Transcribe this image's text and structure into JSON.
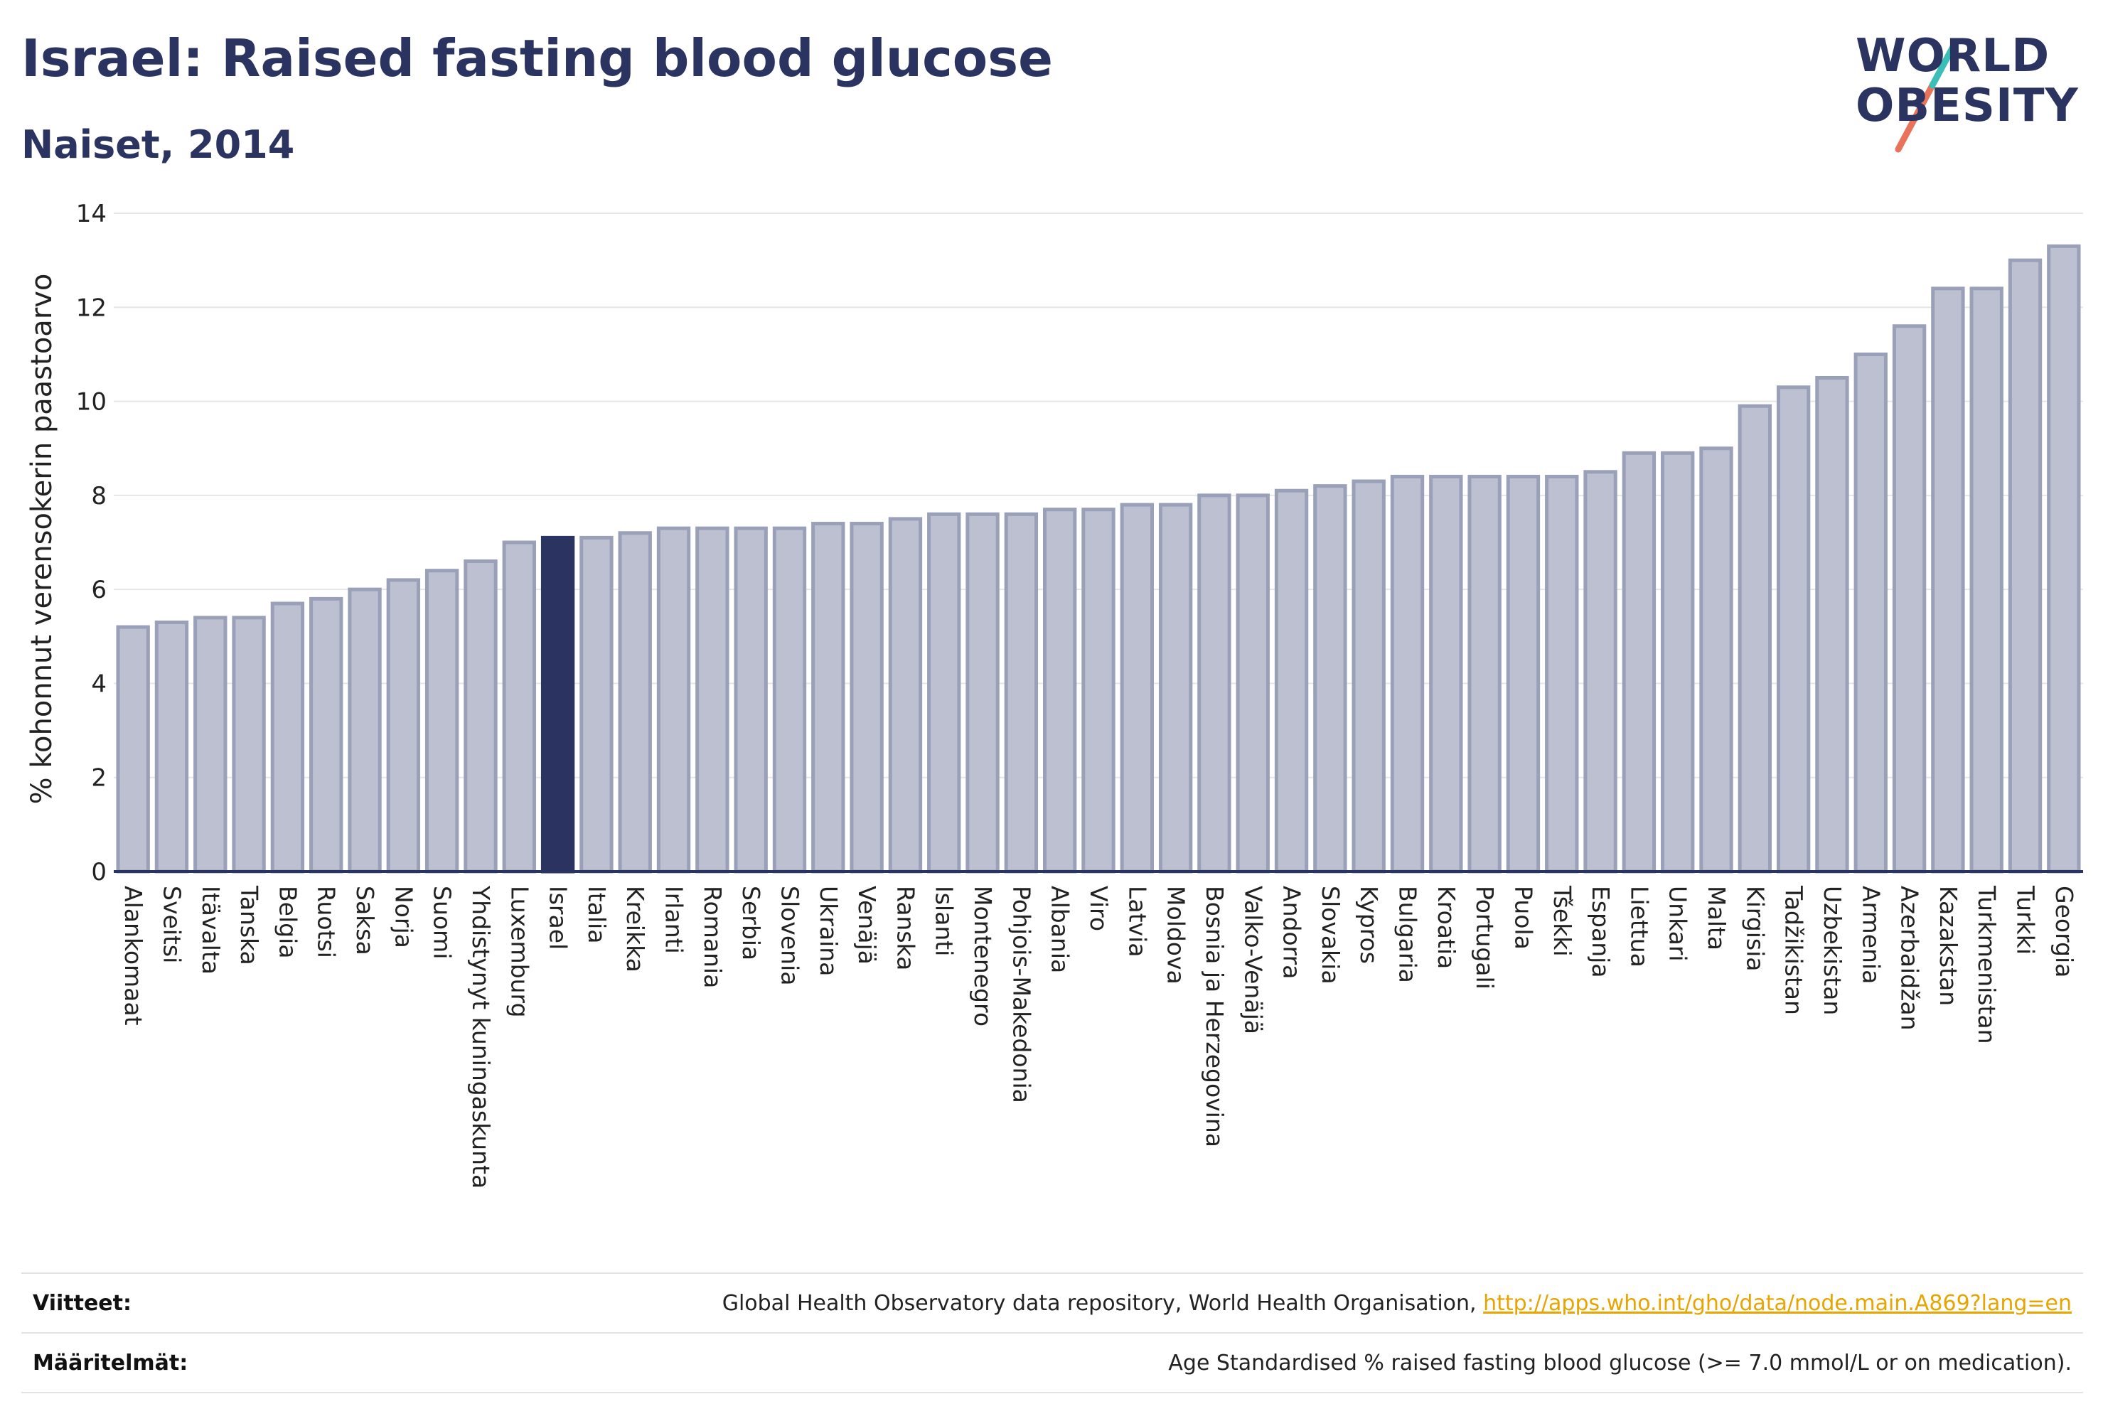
{
  "header": {
    "title": "Israel: Raised fasting blood glucose",
    "subtitle": "Naiset, 2014"
  },
  "logo": {
    "line1": "WORLD",
    "line2": "OBESITY",
    "colors": {
      "text": "#2b3460",
      "slash_teal": "#3bbdb8",
      "slash_coral": "#e8735a"
    }
  },
  "colors": {
    "bar": "#bcc0d0",
    "bar_stroke": "#9aa0b8",
    "highlight": "#2b3460",
    "grid": "#e6e6e6",
    "axis": "#2b3460"
  },
  "chart_data": {
    "type": "bar",
    "title": "Israel: Raised fasting blood glucose",
    "subtitle": "Naiset, 2014",
    "xlabel": "",
    "ylabel": "% kohonnut verensokerin paastoarvo",
    "ylim": [
      0,
      14
    ],
    "yticks": [
      0,
      2,
      4,
      6,
      8,
      10,
      12,
      14
    ],
    "grid": true,
    "highlight": "Israel",
    "categories": [
      "Alankomaat",
      "Sveitsi",
      "Itävalta",
      "Tanska",
      "Belgia",
      "Ruotsi",
      "Saksa",
      "Norja",
      "Suomi",
      "Yhdistynyt kuningaskunta",
      "Luxemburg",
      "Israel",
      "Italia",
      "Kreikka",
      "Irlanti",
      "Romania",
      "Serbia",
      "Slovenia",
      "Ukraina",
      "Venäjä",
      "Ranska",
      "Islanti",
      "Montenegro",
      "Pohjois-Makedonia",
      "Albania",
      "Viro",
      "Latvia",
      "Moldova",
      "Bosnia ja Herzegovina",
      "Valko-Venäjä",
      "Andorra",
      "Slovakia",
      "Kypros",
      "Bulgaria",
      "Kroatia",
      "Portugali",
      "Puola",
      "Tšekki",
      "Espanja",
      "Liettua",
      "Unkari",
      "Malta",
      "Kirgisia",
      "Tadžikistan",
      "Uzbekistan",
      "Armenia",
      "Azerbaidžan",
      "Kazakstan",
      "Turkmenistan",
      "Turkki",
      "Georgia"
    ],
    "values": [
      5.2,
      5.3,
      5.4,
      5.4,
      5.7,
      5.8,
      6.0,
      6.2,
      6.4,
      6.6,
      7.0,
      7.1,
      7.1,
      7.2,
      7.3,
      7.3,
      7.3,
      7.3,
      7.4,
      7.4,
      7.5,
      7.6,
      7.6,
      7.6,
      7.7,
      7.7,
      7.8,
      7.8,
      8.0,
      8.0,
      8.1,
      8.2,
      8.3,
      8.4,
      8.4,
      8.4,
      8.4,
      8.4,
      8.5,
      8.9,
      8.9,
      9.0,
      9.9,
      10.3,
      10.5,
      11.0,
      11.6,
      12.4,
      12.4,
      13.0,
      13.3
    ]
  },
  "footer": {
    "sources_label": "Viitteet:",
    "sources_text": "Global Health Observatory data repository, World Health Organisation,",
    "sources_link": "http://apps.who.int/gho/data/node.main.A869?lang=en",
    "definitions_label": "Määritelmät:",
    "definitions_text": "Age Standardised % raised fasting blood glucose (>= 7.0 mmol/L or on medication)."
  }
}
